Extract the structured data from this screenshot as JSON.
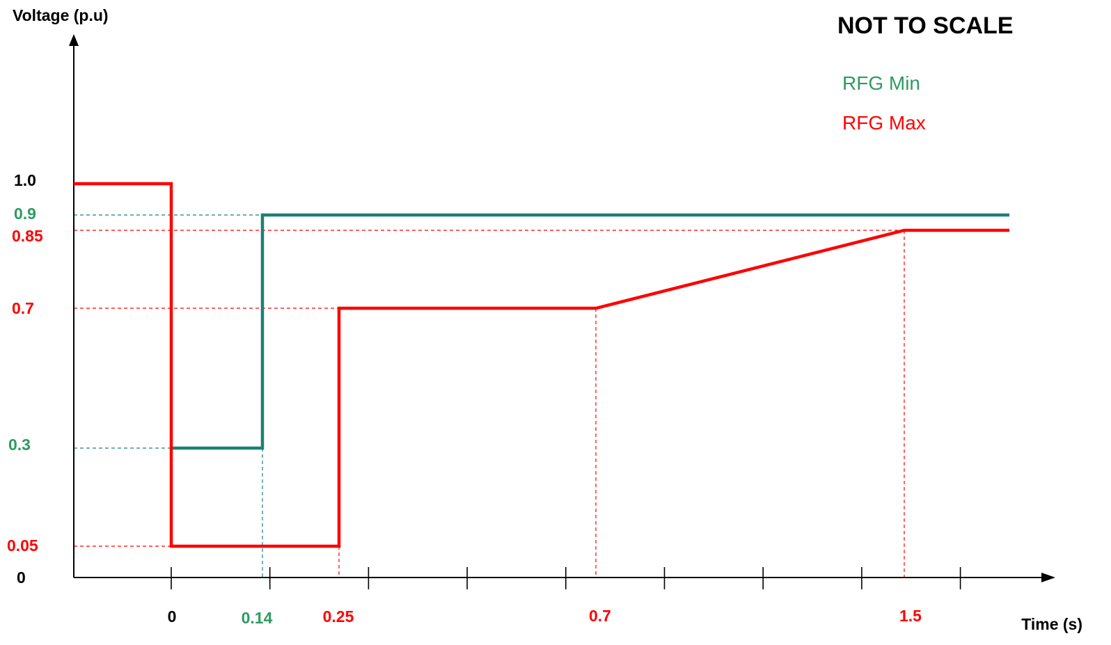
{
  "chart_data": {
    "type": "line",
    "title": "",
    "ylabel": "Voltage (p.u)",
    "xlabel": "Time (s)",
    "note": "NOT TO SCALE",
    "colors": {
      "min": "#1a8073",
      "max": "#ff0000",
      "axis": "#000000",
      "label_min": "#2e9a62"
    },
    "y_tick_labels": [
      {
        "value": 1.0,
        "label": "1.0",
        "color": "#000000"
      },
      {
        "value": 0.9,
        "label": "0.9",
        "color": "#2e9a62"
      },
      {
        "value": 0.85,
        "label": "0.85",
        "color": "#ff0000"
      },
      {
        "value": 0.7,
        "label": "0.7",
        "color": "#ff0000"
      },
      {
        "value": 0.3,
        "label": "0.3",
        "color": "#2e9a62"
      },
      {
        "value": 0.05,
        "label": "0.05",
        "color": "#ff0000"
      },
      {
        "value": 0,
        "label": "0",
        "color": "#000000"
      }
    ],
    "x_tick_labels": [
      {
        "value": 0,
        "label": "0",
        "color": "#000000"
      },
      {
        "value": 0.14,
        "label": "0.14",
        "color": "#2e9a62"
      },
      {
        "value": 0.25,
        "label": "0.25",
        "color": "#ff0000"
      },
      {
        "value": 0.7,
        "label": "0.7",
        "color": "#ff0000"
      },
      {
        "value": 1.5,
        "label": "1.5",
        "color": "#ff0000"
      }
    ],
    "series": [
      {
        "name": "RFG Min",
        "key": "min",
        "points": [
          [
            0,
            0.3
          ],
          [
            0.14,
            0.3
          ],
          [
            0.14,
            0.9
          ],
          [
            2.5,
            0.9
          ]
        ]
      },
      {
        "name": "RFG Max",
        "key": "max",
        "points": [
          [
            -0.25,
            1.0
          ],
          [
            0,
            1.0
          ],
          [
            0,
            0.05
          ],
          [
            0.25,
            0.05
          ],
          [
            0.25,
            0.7
          ],
          [
            0.7,
            0.7
          ],
          [
            1.5,
            0.85
          ],
          [
            2.5,
            0.85
          ]
        ]
      }
    ],
    "guides": [
      {
        "key": "min",
        "from": [
          -0.25,
          0.9
        ],
        "to": [
          0.14,
          0.9
        ]
      },
      {
        "key": "min",
        "from": [
          -0.25,
          0.3
        ],
        "to": [
          0,
          0.3
        ]
      },
      {
        "key": "min",
        "from": [
          0.14,
          0.3
        ],
        "to": [
          0.14,
          0
        ]
      },
      {
        "key": "max",
        "from": [
          -0.25,
          0.85
        ],
        "to": [
          1.5,
          0.85
        ]
      },
      {
        "key": "max",
        "from": [
          -0.25,
          0.7
        ],
        "to": [
          0.25,
          0.7
        ]
      },
      {
        "key": "max",
        "from": [
          -0.25,
          0.05
        ],
        "to": [
          0,
          0.05
        ]
      },
      {
        "key": "max",
        "from": [
          0.25,
          0.05
        ],
        "to": [
          0.25,
          0
        ]
      },
      {
        "key": "max",
        "from": [
          0.7,
          0.7
        ],
        "to": [
          0.7,
          0
        ]
      },
      {
        "key": "max",
        "from": [
          1.5,
          0.85
        ],
        "to": [
          1.5,
          0
        ]
      }
    ],
    "legend_placement": "top-right"
  }
}
